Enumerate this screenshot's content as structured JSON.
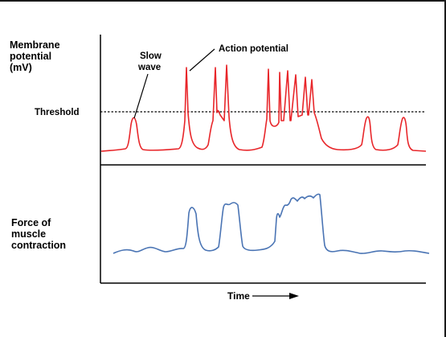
{
  "top_panel": {
    "ylabel_lines": [
      "Membrane",
      "potential",
      "(mV)"
    ],
    "threshold_label": "Threshold",
    "annotation_slow_wave_lines": [
      "Slow",
      "wave"
    ],
    "annotation_action_potential": "Action potential"
  },
  "bottom_panel": {
    "ylabel_lines": [
      "Force of",
      "muscle",
      "contraction"
    ]
  },
  "x_axis": {
    "label": "Time"
  },
  "colors": {
    "membrane_trace": "#e8262a",
    "force_trace": "#4a74b4",
    "axes": "#000000",
    "background": "#ffffff"
  }
}
